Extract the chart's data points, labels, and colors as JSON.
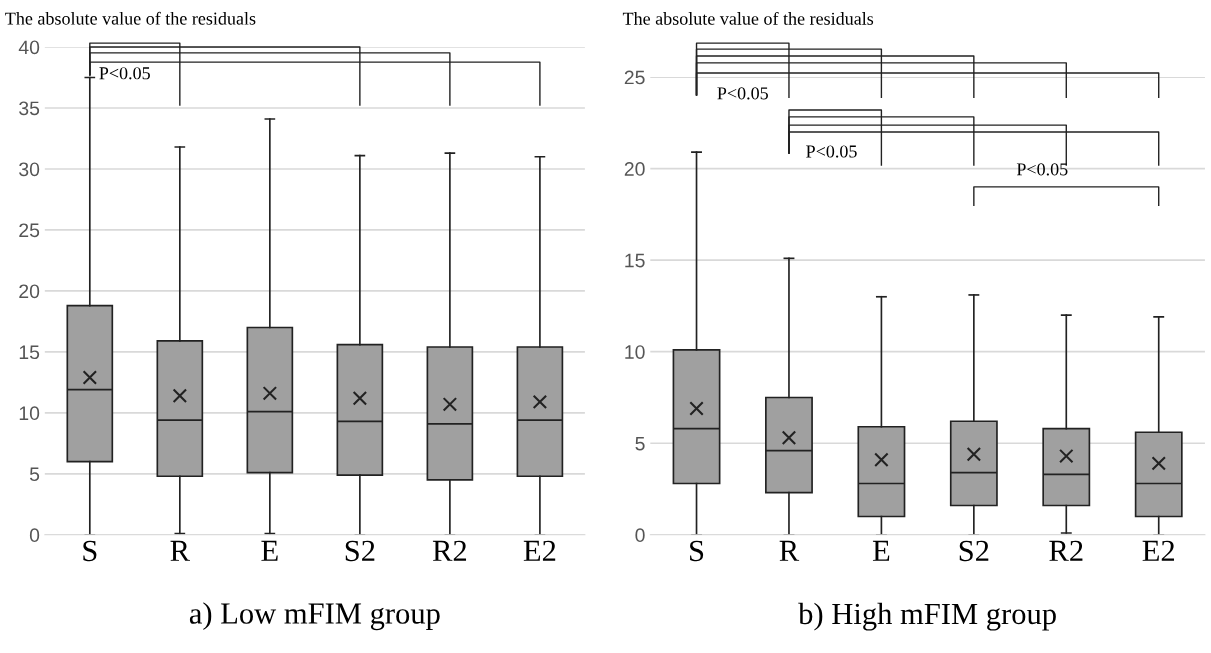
{
  "chart_data": [
    {
      "type": "box",
      "title": "a) Low mFIM group",
      "ylabel": "The absolute value of the residuals",
      "categories": [
        "S",
        "R",
        "E",
        "S2",
        "R2",
        "E2"
      ],
      "color": "#a0a0a0",
      "boxes": [
        {
          "low": 0,
          "q1": 6.0,
          "median": 11.9,
          "q3": 18.8,
          "high": 37.5,
          "mean": 12.9
        },
        {
          "low": 0.1,
          "q1": 4.8,
          "median": 9.4,
          "q3": 15.9,
          "high": 31.8,
          "mean": 11.4
        },
        {
          "low": 0.1,
          "q1": 5.1,
          "median": 10.1,
          "q3": 17.0,
          "high": 34.1,
          "mean": 11.6
        },
        {
          "low": 0,
          "q1": 4.9,
          "median": 9.3,
          "q3": 15.6,
          "high": 31.1,
          "mean": 11.2
        },
        {
          "low": 0,
          "q1": 4.5,
          "median": 9.1,
          "q3": 15.4,
          "high": 31.3,
          "mean": 10.7
        },
        {
          "low": 0,
          "q1": 4.8,
          "median": 9.4,
          "q3": 15.4,
          "high": 31.0,
          "mean": 10.9
        }
      ],
      "ylim": [
        0,
        40
      ],
      "yticks": [
        0,
        5,
        10,
        15,
        20,
        25,
        30,
        35,
        40
      ],
      "grid": "y",
      "annotations": [
        "P<0.05"
      ]
    },
    {
      "type": "box",
      "title": "b) High mFIM group",
      "ylabel": "The absolute value of the residuals",
      "categories": [
        "S",
        "R",
        "E",
        "S2",
        "R2",
        "E2"
      ],
      "color": "#a0a0a0",
      "boxes": [
        {
          "low": 0,
          "q1": 2.8,
          "median": 5.8,
          "q3": 10.1,
          "high": 20.9,
          "mean": 6.9
        },
        {
          "low": 0,
          "q1": 2.3,
          "median": 4.6,
          "q3": 7.5,
          "high": 15.1,
          "mean": 5.3
        },
        {
          "low": 0,
          "q1": 1.0,
          "median": 2.8,
          "q3": 5.9,
          "high": 13.0,
          "mean": 4.1
        },
        {
          "low": 0,
          "q1": 1.6,
          "median": 3.4,
          "q3": 6.2,
          "high": 13.1,
          "mean": 4.4
        },
        {
          "low": 0.1,
          "q1": 1.6,
          "median": 3.3,
          "q3": 5.8,
          "high": 12.0,
          "mean": 4.3
        },
        {
          "low": 0,
          "q1": 1.0,
          "median": 2.8,
          "q3": 5.6,
          "high": 11.9,
          "mean": 3.9
        }
      ],
      "ylim": [
        0,
        25
      ],
      "yticks": [
        0,
        5,
        10,
        15,
        20,
        25
      ],
      "grid": "y",
      "annotations": [
        "P<0.05",
        "P<0.05",
        "P<0.05"
      ]
    }
  ]
}
